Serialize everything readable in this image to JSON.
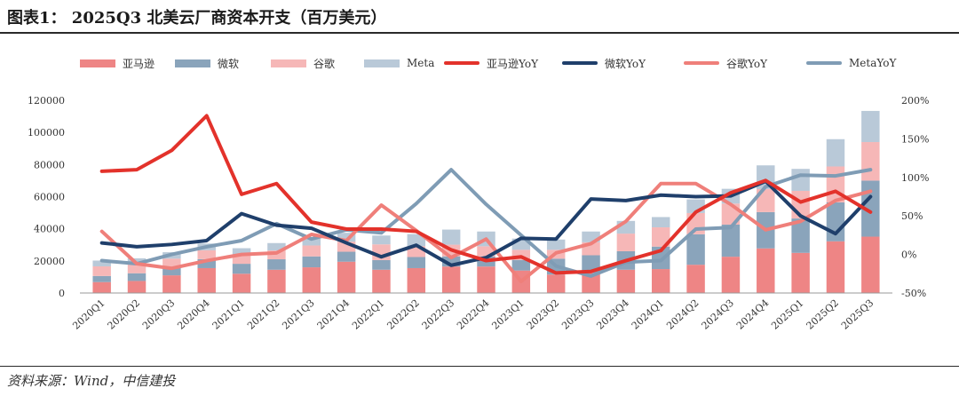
{
  "title": "图表1：   2025Q3 北美云厂商资本开支（百万美元）",
  "source": "资料来源：Wind，中信建投",
  "colors": {
    "amazon_bar": "#ee8585",
    "microsoft_bar": "#8aa4bb",
    "google_bar": "#f6b7b7",
    "meta_bar": "#b9c9d8",
    "amazon_yoy": "#e3322b",
    "microsoft_yoy": "#1f3f6b",
    "google_yoy": "#ef7f7a",
    "meta_yoy": "#7f9cb5"
  },
  "legend": [
    {
      "label": "亚马逊",
      "kind": "bar",
      "color": "#ee8585"
    },
    {
      "label": "微软",
      "kind": "bar",
      "color": "#8aa4bb"
    },
    {
      "label": "谷歌",
      "kind": "bar",
      "color": "#f6b7b7"
    },
    {
      "label": "Meta",
      "kind": "bar",
      "color": "#b9c9d8"
    },
    {
      "label": "亚马逊YoY",
      "kind": "line",
      "color": "#e3322b"
    },
    {
      "label": "微软YoY",
      "kind": "line",
      "color": "#1f3f6b"
    },
    {
      "label": "谷歌YoY",
      "kind": "line",
      "color": "#ef7f7a"
    },
    {
      "label": "MetaYoY",
      "kind": "line",
      "color": "#7f9cb5"
    }
  ],
  "chart_data": {
    "type": "bar",
    "stacked": true,
    "categories": [
      "2020Q1",
      "2020Q2",
      "2020Q3",
      "2020Q4",
      "2021Q1",
      "2021Q2",
      "2021Q3",
      "2021Q4",
      "2022Q1",
      "2022Q2",
      "2022Q3",
      "2022Q4",
      "2023Q1",
      "2023Q2",
      "2023Q3",
      "2023Q4",
      "2024Q1",
      "2024Q2",
      "2024Q3",
      "2024Q4",
      "2025Q1",
      "2025Q2",
      "2025Q3"
    ],
    "left_axis": {
      "min": 0,
      "max": 120000,
      "ticks": [
        "0",
        "20000",
        "40000",
        "60000",
        "80000",
        "100000",
        "120000"
      ]
    },
    "right_axis": {
      "min": -50,
      "max": 200,
      "unit": "%",
      "ticks": [
        "-50%",
        "0%",
        "50%",
        "100%",
        "150%",
        "200%"
      ]
    },
    "series": [
      {
        "name": "亚马逊",
        "type": "bar",
        "values": [
          6800,
          7500,
          11000,
          15500,
          12000,
          14500,
          16000,
          19500,
          14500,
          15500,
          16500,
          16500,
          14000,
          11500,
          12500,
          14500,
          14900,
          17600,
          22600,
          27800,
          25000,
          32200,
          35100
        ]
      },
      {
        "name": "微软",
        "type": "bar",
        "values": [
          3800,
          4800,
          5000,
          5600,
          6200,
          6500,
          6800,
          6200,
          6000,
          6900,
          6300,
          6300,
          6600,
          9900,
          11000,
          11500,
          14000,
          19000,
          20000,
          22600,
          21400,
          24200,
          34900
        ]
      },
      {
        "name": "谷歌",
        "type": "bar",
        "values": [
          6000,
          5400,
          5400,
          5500,
          5400,
          5500,
          6800,
          6300,
          9800,
          6800,
          7300,
          6300,
          6300,
          5500,
          8100,
          11000,
          12000,
          13200,
          13100,
          14300,
          17200,
          22400,
          24000
        ]
      },
      {
        "name": "Meta",
        "type": "bar",
        "values": [
          3600,
          3900,
          4000,
          4200,
          4300,
          4600,
          4300,
          5500,
          5500,
          7500,
          9400,
          9200,
          7000,
          6400,
          6700,
          7900,
          6400,
          8500,
          9200,
          14800,
          13700,
          17000,
          19400
        ]
      },
      {
        "name": "亚马逊YoY",
        "type": "line",
        "axis": "right",
        "values": [
          108,
          110,
          135,
          180,
          78,
          92,
          42,
          33,
          33,
          30,
          6,
          -8,
          -3,
          -24,
          -22,
          -8,
          5,
          55,
          80,
          96,
          68,
          82,
          55
        ]
      },
      {
        "name": "微软YoY",
        "type": "line",
        "axis": "right",
        "values": [
          15,
          10,
          13,
          18,
          53,
          38,
          34,
          15,
          -3,
          12,
          -14,
          -4,
          21,
          20,
          72,
          70,
          77,
          75,
          76,
          95,
          50,
          27,
          75
        ]
      },
      {
        "name": "谷歌YoY",
        "type": "line",
        "axis": "right",
        "values": [
          30,
          -12,
          -18,
          -8,
          0,
          2,
          26,
          18,
          64,
          31,
          -4,
          20,
          -35,
          2,
          14,
          43,
          92,
          92,
          65,
          32,
          43,
          70,
          82
        ]
      },
      {
        "name": "MetaYoY",
        "type": "line",
        "axis": "right",
        "values": [
          -8,
          -12,
          0,
          10,
          18,
          40,
          20,
          32,
          28,
          66,
          110,
          65,
          25,
          -15,
          -28,
          -10,
          -8,
          33,
          35,
          88,
          103,
          102,
          110
        ]
      }
    ]
  }
}
